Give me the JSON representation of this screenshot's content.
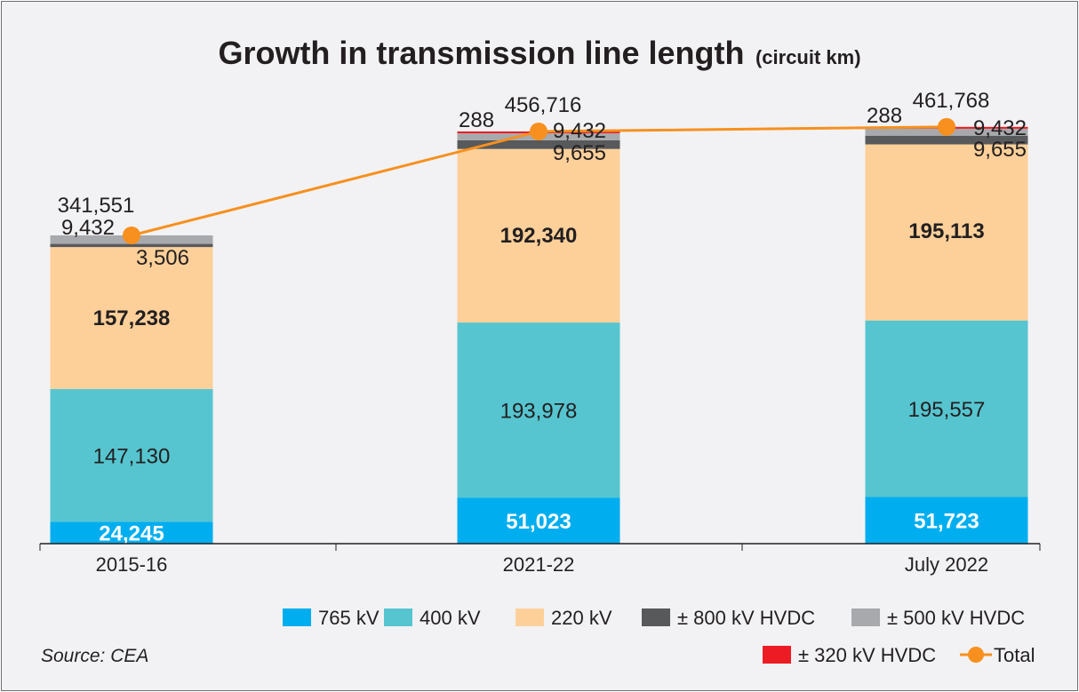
{
  "chart_data": {
    "type": "bar",
    "stacked": true,
    "title": "Growth in transmission line length",
    "title_unit": "(circuit km)",
    "categories": [
      "2015-16",
      "2021-22",
      "July 2022"
    ],
    "series": [
      {
        "name": "765 kV",
        "color": "#00aeef",
        "values": [
          24245,
          51023,
          51723
        ],
        "labels": [
          "24,245",
          "51,023",
          "51,723"
        ]
      },
      {
        "name": "400 kV",
        "color": "#56c5d0",
        "values": [
          147130,
          193978,
          195557
        ],
        "labels": [
          "147,130",
          "193,978",
          "195,557"
        ]
      },
      {
        "name": "220 kV",
        "color": "#fdd09a",
        "values": [
          157238,
          192340,
          195113
        ],
        "labels": [
          "157,238",
          "192,340",
          "195,113"
        ]
      },
      {
        "name": "± 800 kV HVDC",
        "color": "#58595b",
        "values": [
          3506,
          9655,
          9655
        ],
        "labels": [
          "3,506",
          "9,655",
          "9,655"
        ]
      },
      {
        "name": "± 500 kV HVDC",
        "color": "#a7a9ac",
        "values": [
          9432,
          9432,
          9432
        ],
        "labels": [
          "9,432",
          "9,432",
          "9,432"
        ]
      },
      {
        "name": "± 320 kV HVDC",
        "color": "#ed1c24",
        "values": [
          0,
          288,
          288
        ],
        "labels": [
          "",
          "288",
          "288"
        ]
      }
    ],
    "total": {
      "name": "Total",
      "color": "#f7901e",
      "values": [
        341551,
        456716,
        461768
      ],
      "labels": [
        "341,551",
        "456,716",
        "461,768"
      ]
    },
    "ylim": [
      0,
      500000
    ],
    "grid": false,
    "legend_placement": "bottom-right"
  },
  "source": "Source: CEA"
}
